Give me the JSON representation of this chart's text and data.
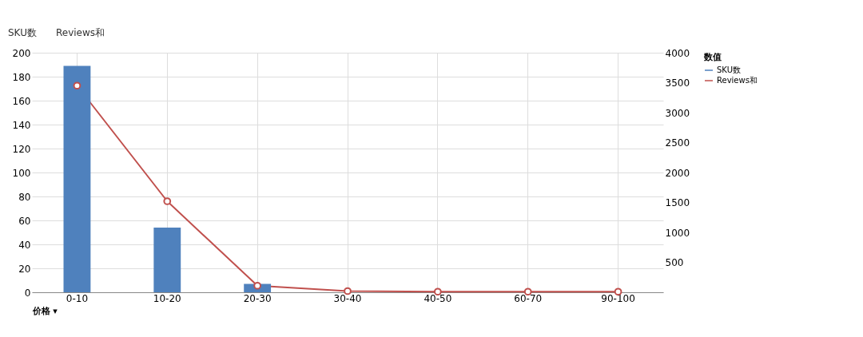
{
  "chart_data": {
    "type": "bar",
    "categories": [
      "0-10",
      "10-20",
      "20-30",
      "30-40",
      "40-50",
      "60-70",
      "90-100"
    ],
    "series": [
      {
        "name": "SKU数",
        "color": "#4f81bd",
        "values": [
          189,
          54,
          7,
          null,
          null,
          null,
          null
        ]
      },
      {
        "name": "Reviews和",
        "type": "line",
        "axis": "y2",
        "color": "#c0504d",
        "marker": "circle",
        "values": [
          3450,
          1520,
          110,
          20,
          10,
          10,
          10
        ]
      }
    ],
    "xlabel": "价格 ▾",
    "legend_title": "数值",
    "legend": "right",
    "ylim": [
      0,
      200
    ],
    "yticks": [
      0,
      20,
      40,
      60,
      80,
      100,
      120,
      140,
      160,
      180,
      200
    ],
    "y2lim": [
      0,
      4000
    ],
    "y2ticks": [
      500,
      1000,
      1500,
      2000,
      2500,
      3000,
      3500,
      4000
    ],
    "grid": true,
    "annotations": [
      "SKU数",
      "Reviews和"
    ]
  }
}
